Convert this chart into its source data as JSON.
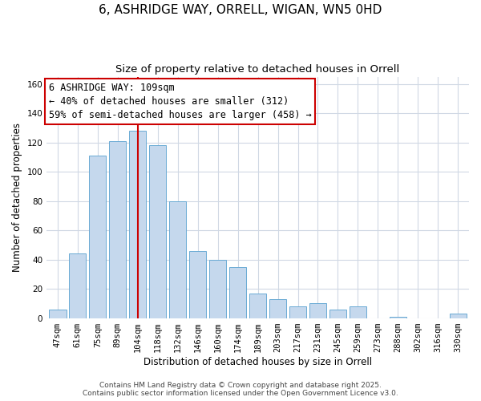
{
  "title": "6, ASHRIDGE WAY, ORRELL, WIGAN, WN5 0HD",
  "subtitle": "Size of property relative to detached houses in Orrell",
  "xlabel": "Distribution of detached houses by size in Orrell",
  "ylabel": "Number of detached properties",
  "categories": [
    "47sqm",
    "61sqm",
    "75sqm",
    "89sqm",
    "104sqm",
    "118sqm",
    "132sqm",
    "146sqm",
    "160sqm",
    "174sqm",
    "189sqm",
    "203sqm",
    "217sqm",
    "231sqm",
    "245sqm",
    "259sqm",
    "273sqm",
    "288sqm",
    "302sqm",
    "316sqm",
    "330sqm"
  ],
  "values": [
    6,
    44,
    111,
    121,
    128,
    118,
    80,
    46,
    40,
    35,
    17,
    13,
    8,
    10,
    6,
    8,
    0,
    1,
    0,
    0,
    3
  ],
  "bar_color": "#c5d8ed",
  "bar_edge_color": "#6aaad4",
  "vline_x_index": 4,
  "vline_color": "#cc0000",
  "annotation_line1": "6 ASHRIDGE WAY: 109sqm",
  "annotation_line2": "← 40% of detached houses are smaller (312)",
  "annotation_line3": "59% of semi-detached houses are larger (458) →",
  "annotation_box_color": "#ffffff",
  "annotation_box_edge": "#cc0000",
  "ylim": [
    0,
    165
  ],
  "yticks": [
    0,
    20,
    40,
    60,
    80,
    100,
    120,
    140,
    160
  ],
  "footer_line1": "Contains HM Land Registry data © Crown copyright and database right 2025.",
  "footer_line2": "Contains public sector information licensed under the Open Government Licence v3.0.",
  "background_color": "#ffffff",
  "grid_color": "#d0d8e4",
  "title_fontsize": 11,
  "subtitle_fontsize": 9.5,
  "axis_label_fontsize": 8.5,
  "tick_fontsize": 7.5,
  "footer_fontsize": 6.5,
  "annotation_fontsize": 8.5
}
